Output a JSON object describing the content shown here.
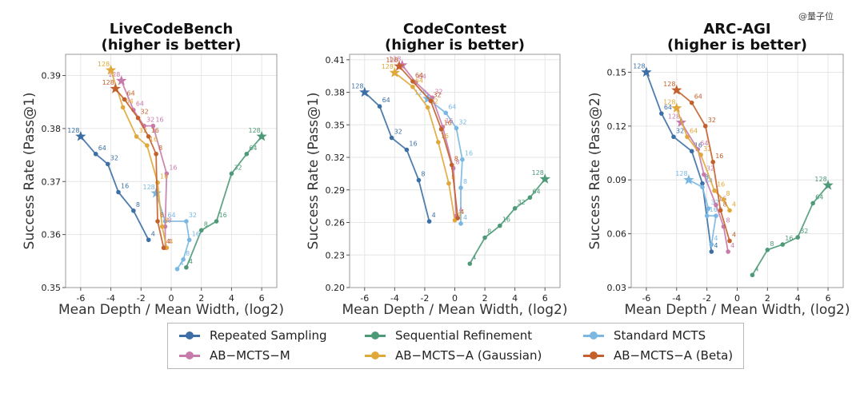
{
  "watermark": "@量子位",
  "colors": {
    "repeated": "#3b6fa5",
    "sequential": "#4e9a78",
    "standard": "#7ab8e3",
    "abm": "#c77bab",
    "aba_gauss": "#e0a83a",
    "aba_beta": "#c4602c"
  },
  "legend": [
    {
      "key": "repeated",
      "label": "Repeated Sampling"
    },
    {
      "key": "sequential",
      "label": "Sequential Refinement"
    },
    {
      "key": "standard",
      "label": "Standard MCTS"
    },
    {
      "key": "abm",
      "label": "AB−MCTS−M"
    },
    {
      "key": "aba_gauss",
      "label": "AB−MCTS−A (Gaussian)"
    },
    {
      "key": "aba_beta",
      "label": "AB−MCTS−A (Beta)"
    }
  ],
  "chart_data": [
    {
      "type": "line",
      "title_line1": "LiveCodeBench",
      "title_line2": "(higher is better)",
      "xlabel": "Mean Depth / Mean Width, (log2)",
      "ylabel": "Success Rate (Pass@1)",
      "xlim": [
        -7,
        7
      ],
      "ylim": [
        0.35,
        0.394
      ],
      "xticks": [
        -6,
        -4,
        -2,
        0,
        2,
        4,
        6
      ],
      "yticks": [
        0.35,
        0.36,
        0.37,
        0.38,
        0.39
      ],
      "ytick_labels": [
        "0.35",
        "0.36",
        "0.37",
        "0.38",
        "0.39"
      ],
      "series": [
        {
          "key": "repeated",
          "points": [
            [
              -1.5,
              0.359,
              "4"
            ],
            [
              -2.5,
              0.3645,
              "8"
            ],
            [
              -3.5,
              0.368,
              "16"
            ],
            [
              -4.2,
              0.3733,
              "32"
            ],
            [
              -5.0,
              0.3752,
              "64"
            ],
            [
              -6.0,
              0.3785,
              "128"
            ]
          ]
        },
        {
          "key": "sequential",
          "points": [
            [
              1.0,
              0.3538,
              "4"
            ],
            [
              2.0,
              0.3608,
              "8"
            ],
            [
              3.0,
              0.3625,
              "16"
            ],
            [
              4.0,
              0.3715,
              "32"
            ],
            [
              5.0,
              0.3752,
              "64"
            ],
            [
              6.0,
              0.3785,
              "128"
            ]
          ]
        },
        {
          "key": "standard",
          "points": [
            [
              0.4,
              0.3535,
              "4"
            ],
            [
              0.8,
              0.3553,
              "8"
            ],
            [
              1.2,
              0.359,
              "16"
            ],
            [
              1.0,
              0.3625,
              "32"
            ],
            [
              -0.4,
              0.3625,
              "64"
            ],
            [
              -1.0,
              0.3678,
              "128"
            ]
          ]
        },
        {
          "key": "abm",
          "points": [
            [
              -0.4,
              0.3575,
              "4"
            ],
            [
              -0.4,
              0.3615,
              "8"
            ],
            [
              -0.3,
              0.3715,
              "16"
            ],
            [
              -1.2,
              0.3805,
              "16"
            ],
            [
              -1.8,
              0.3805,
              "32"
            ],
            [
              -2.5,
              0.3835,
              "64"
            ],
            [
              -3.3,
              0.389,
              "128"
            ]
          ]
        },
        {
          "key": "aba_gauss",
          "points": [
            [
              -0.3,
              0.3575,
              "4"
            ],
            [
              -0.6,
              0.3615,
              "8"
            ],
            [
              -0.9,
              0.3698,
              "16"
            ],
            [
              -1.6,
              0.3768,
              "16"
            ],
            [
              -2.3,
              0.3785,
              "32"
            ],
            [
              -3.2,
              0.384,
              "64"
            ],
            [
              -4.0,
              0.391,
              "128"
            ]
          ]
        },
        {
          "key": "aba_beta",
          "points": [
            [
              -0.5,
              0.3575,
              "4"
            ],
            [
              -0.9,
              0.3625,
              "8"
            ],
            [
              -1.0,
              0.3752,
              "8"
            ],
            [
              -1.5,
              0.3785,
              "16"
            ],
            [
              -2.2,
              0.382,
              "32"
            ],
            [
              -3.1,
              0.3855,
              "64"
            ],
            [
              -3.7,
              0.3875,
              "128"
            ]
          ]
        }
      ]
    },
    {
      "type": "line",
      "title_line1": "CodeContest",
      "title_line2": "(higher is better)",
      "xlabel": "Mean Depth / Mean Width, (log2)",
      "ylabel": "Success Rate (Pass@1)",
      "xlim": [
        -7,
        7
      ],
      "ylim": [
        0.2,
        0.415
      ],
      "xticks": [
        -6,
        -4,
        -2,
        0,
        2,
        4,
        6
      ],
      "yticks": [
        0.2,
        0.23,
        0.26,
        0.29,
        0.32,
        0.35,
        0.38,
        0.41
      ],
      "ytick_labels": [
        "0.20",
        "0.23",
        "0.26",
        "0.29",
        "0.32",
        "0.35",
        "0.38",
        "0.41"
      ],
      "series": [
        {
          "key": "repeated",
          "points": [
            [
              -1.7,
              0.261,
              "4"
            ],
            [
              -2.4,
              0.299,
              "8"
            ],
            [
              -3.2,
              0.327,
              "16"
            ],
            [
              -4.2,
              0.338,
              "32"
            ],
            [
              -5.0,
              0.367,
              "64"
            ],
            [
              -6.0,
              0.38,
              "128"
            ]
          ]
        },
        {
          "key": "sequential",
          "points": [
            [
              1.0,
              0.222,
              "4"
            ],
            [
              2.0,
              0.246,
              "8"
            ],
            [
              3.0,
              0.257,
              "16"
            ],
            [
              4.0,
              0.273,
              "32"
            ],
            [
              5.0,
              0.283,
              "64"
            ],
            [
              6.0,
              0.3,
              "128"
            ]
          ]
        },
        {
          "key": "standard",
          "points": [
            [
              0.4,
              0.259,
              "4"
            ],
            [
              0.4,
              0.292,
              "8"
            ],
            [
              0.5,
              0.318,
              "16"
            ],
            [
              0.1,
              0.347,
              "32"
            ],
            [
              -0.6,
              0.361,
              "64"
            ],
            [
              -1.8,
              0.374,
              "128"
            ]
          ]
        },
        {
          "key": "abm",
          "points": [
            [
              0.1,
              0.266,
              "4"
            ],
            [
              -0.1,
              0.31,
              "8"
            ],
            [
              -0.8,
              0.348,
              "16"
            ],
            [
              -1.5,
              0.375,
              "32"
            ],
            [
              -2.6,
              0.389,
              "64"
            ],
            [
              -3.5,
              0.405,
              "128"
            ]
          ]
        },
        {
          "key": "aba_gauss",
          "points": [
            [
              0.0,
              0.262,
              "4"
            ],
            [
              -0.4,
              0.296,
              "8"
            ],
            [
              -1.1,
              0.334,
              "16"
            ],
            [
              -1.8,
              0.366,
              "32"
            ],
            [
              -2.8,
              0.385,
              "64"
            ],
            [
              -4.0,
              0.398,
              "128"
            ]
          ]
        },
        {
          "key": "aba_beta",
          "points": [
            [
              0.2,
              0.264,
              "4"
            ],
            [
              -0.2,
              0.313,
              "8"
            ],
            [
              -0.9,
              0.346,
              "16"
            ],
            [
              -1.6,
              0.372,
              "32"
            ],
            [
              -2.8,
              0.39,
              "64"
            ],
            [
              -3.7,
              0.404,
              "128"
            ]
          ]
        }
      ]
    },
    {
      "type": "line",
      "title_line1": "ARC-AGI",
      "title_line2": "(higher is better)",
      "xlabel": "Mean Depth / Mean Width, (log2)",
      "ylabel": "Success Rate (Pass@2)",
      "xlim": [
        -7,
        7
      ],
      "ylim": [
        0.03,
        0.16
      ],
      "xticks": [
        -6,
        -4,
        -2,
        0,
        2,
        4,
        6
      ],
      "yticks": [
        0.03,
        0.06,
        0.09,
        0.12,
        0.15
      ],
      "ytick_labels": [
        "0.03",
        "0.06",
        "0.09",
        "0.12",
        "0.15"
      ],
      "series": [
        {
          "key": "repeated",
          "points": [
            [
              -1.7,
              0.05,
              "4"
            ],
            [
              -2.3,
              0.088,
              "8"
            ],
            [
              -3.0,
              0.106,
              "16"
            ],
            [
              -4.2,
              0.114,
              "32"
            ],
            [
              -5.0,
              0.127,
              "64"
            ],
            [
              -6.0,
              0.15,
              "128"
            ]
          ]
        },
        {
          "key": "sequential",
          "points": [
            [
              1.0,
              0.037,
              "4"
            ],
            [
              2.0,
              0.051,
              "8"
            ],
            [
              3.0,
              0.054,
              "16"
            ],
            [
              4.0,
              0.058,
              "32"
            ],
            [
              5.0,
              0.077,
              "64"
            ],
            [
              6.0,
              0.087,
              "128"
            ]
          ]
        },
        {
          "key": "standard",
          "points": [
            [
              -1.7,
              0.054,
              "4"
            ],
            [
              -1.4,
              0.07,
              "8"
            ],
            [
              -2.0,
              0.07,
              "16"
            ],
            [
              -1.9,
              0.074,
              "32"
            ],
            [
              -2.3,
              0.086,
              "64"
            ],
            [
              -3.2,
              0.09,
              "128"
            ]
          ]
        },
        {
          "key": "abm",
          "points": [
            [
              -0.6,
              0.05,
              "4"
            ],
            [
              -0.9,
              0.064,
              "8"
            ],
            [
              -1.4,
              0.076,
              "16"
            ],
            [
              -2.2,
              0.093,
              "32"
            ],
            [
              -2.6,
              0.107,
              "64"
            ],
            [
              -3.7,
              0.122,
              "128"
            ]
          ]
        },
        {
          "key": "aba_gauss",
          "points": [
            [
              -0.5,
              0.073,
              "4"
            ],
            [
              -0.9,
              0.079,
              "8"
            ],
            [
              -1.5,
              0.084,
              "16"
            ],
            [
              -2.4,
              0.104,
              "32"
            ],
            [
              -3.3,
              0.114,
              "64"
            ],
            [
              -4.0,
              0.13,
              "128"
            ]
          ]
        },
        {
          "key": "aba_beta",
          "points": [
            [
              -0.5,
              0.056,
              "4"
            ],
            [
              -1.1,
              0.073,
              "8"
            ],
            [
              -1.6,
              0.1,
              "16"
            ],
            [
              -2.1,
              0.12,
              "32"
            ],
            [
              -3.0,
              0.133,
              "64"
            ],
            [
              -4.0,
              0.14,
              "128"
            ]
          ]
        }
      ]
    }
  ]
}
